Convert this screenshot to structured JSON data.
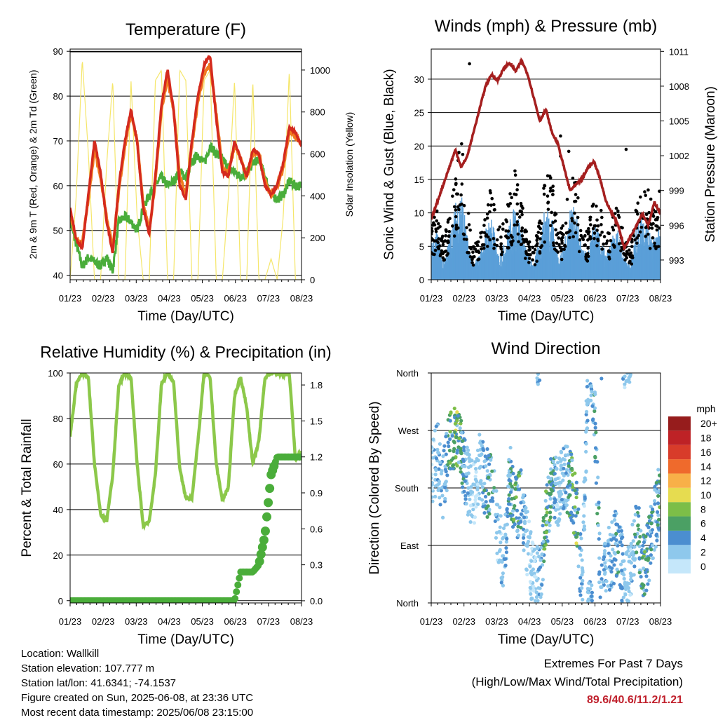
{
  "colors": {
    "temp2m": "#d42a1e",
    "temp9m": "#f07a20",
    "dewpoint": "#4aad3a",
    "solar": "#f5e66a",
    "wind": "#5a9fd8",
    "gust": "#000000",
    "pressure": "#a51f1f",
    "rh": "#8cc84a",
    "precip": "#4aad3a",
    "extremes": "#c0202c",
    "grid": "#000000"
  },
  "info": {
    "location": "Location: Wallkill",
    "elevation": "Station elevation: 107.777 m",
    "latlon": "Station lat/lon: 41.6341; -74.1537",
    "created": "Figure created on Sun, 2025-06-08, at 23:36 UTC",
    "recent": "Most recent data timestamp: 2025/06/08 23:15:00"
  },
  "extremes": {
    "title": "Extremes For Past 7 Days",
    "subtitle": "(High/Low/Max Wind/Total Precipitation)",
    "values": "89.6/40.6/11.2/1.21"
  },
  "chart_data": [
    {
      "type": "line",
      "title": "Temperature (F)",
      "xlabel": "Time (Day/UTC)",
      "ylabel": "2m & 9m T (Red, Orange) & 2m Td (Green)",
      "ylabel_right": "Solar Insolation (Yellow)",
      "x_ticks": [
        "01/23",
        "02/23",
        "03/23",
        "04/23",
        "05/23",
        "06/23",
        "07/23",
        "08/23"
      ],
      "ylim": [
        39,
        90.5
      ],
      "y_ticks": [
        40,
        50,
        60,
        70,
        80,
        90
      ],
      "ylim_right": [
        0,
        1100
      ],
      "y_ticks_right": [
        0,
        200,
        400,
        600,
        800,
        1000
      ],
      "grid": true,
      "series": [
        {
          "name": "2m T",
          "color": "#d42a1e",
          "values": [
            55,
            48,
            46,
            58,
            70,
            63,
            52,
            45,
            60,
            70,
            77,
            70,
            55,
            49,
            62,
            78,
            86,
            77,
            60,
            57,
            70,
            80,
            87,
            89,
            75,
            63,
            62,
            70,
            66,
            62,
            68,
            67,
            60,
            58,
            60,
            65,
            73,
            72,
            69
          ]
        },
        {
          "name": "9m T",
          "color": "#f07a20",
          "values": [
            54,
            48,
            47,
            57,
            68,
            62,
            53,
            46,
            59,
            69,
            76,
            70,
            56,
            50,
            61,
            77,
            84,
            77,
            62,
            58,
            69,
            79,
            85,
            87,
            76,
            64,
            63,
            69,
            66,
            62,
            67,
            67,
            61,
            58,
            60,
            64,
            72,
            71,
            69
          ]
        },
        {
          "name": "2m Td",
          "color": "#4aad3a",
          "values": [
            52,
            47,
            42,
            44,
            43,
            42,
            44,
            41,
            52,
            53,
            52,
            50,
            55,
            58,
            60,
            62,
            60,
            61,
            63,
            62,
            65,
            67,
            65,
            69,
            67,
            66,
            64,
            63,
            62,
            63,
            65,
            66,
            62,
            58,
            57,
            58,
            61,
            60,
            60
          ]
        },
        {
          "name": "Solar Insolation",
          "color": "#f5e66a",
          "axis": "right",
          "values": [
            0,
            400,
            1050,
            600,
            0,
            0,
            550,
            950,
            0,
            0,
            950,
            300,
            0,
            0,
            950,
            1000,
            0,
            0,
            1000,
            950,
            0,
            0,
            950,
            1000,
            0,
            0,
            400,
            950,
            0,
            0,
            950,
            0,
            0,
            100,
            0,
            300,
            1000,
            0,
            0
          ]
        }
      ]
    },
    {
      "type": "scatter",
      "title": "Winds (mph) & Pressure (mb)",
      "xlabel": "Time (Day/UTC)",
      "ylabel": "Sonic Wind & Gust (Blue, Black)",
      "ylabel_right": "Station Pressure (Maroon)",
      "x_ticks": [
        "01/23",
        "02/23",
        "03/23",
        "04/23",
        "05/23",
        "06/23",
        "07/23",
        "08/23"
      ],
      "ylim": [
        0,
        34.5
      ],
      "y_ticks": [
        0,
        5,
        10,
        15,
        20,
        25,
        30
      ],
      "ylim_right": [
        991.3,
        1011.2
      ],
      "y_ticks_right": [
        993,
        996,
        999,
        1002,
        1005,
        1008,
        1011
      ],
      "grid": true,
      "series": [
        {
          "name": "Station Pressure",
          "color": "#a51f1f",
          "axis": "right",
          "line": true,
          "values": [
            996.5,
            998,
            999.5,
            1001,
            1002.5,
            1001,
            1002,
            1004,
            1006,
            1008,
            1009,
            1008.5,
            1009.5,
            1010,
            1009.3,
            1010.2,
            1009,
            1007,
            1005,
            1006,
            1004,
            1003,
            1001,
            999,
            999.5,
            1000,
            1001,
            1001.5,
            1000,
            998,
            997,
            996,
            994,
            995,
            996,
            997,
            996,
            998,
            997
          ]
        },
        {
          "name": "Sonic Wind",
          "color": "#5a9fd8",
          "type": "scatter",
          "values": [
            4,
            6,
            2,
            5,
            9,
            11,
            5,
            2,
            3,
            6,
            8,
            3,
            4,
            7,
            9,
            6,
            3,
            2,
            5,
            9,
            8,
            3,
            4,
            9,
            8,
            4,
            3,
            7,
            5,
            3,
            5,
            6,
            3,
            2,
            6,
            8,
            7,
            5,
            8
          ]
        },
        {
          "name": "Gust",
          "color": "#000000",
          "type": "scatter",
          "values": [
            6,
            9,
            5,
            8,
            14,
            17,
            9,
            4,
            5,
            9,
            12,
            6,
            7,
            10,
            14,
            10,
            5,
            4,
            8,
            13,
            13,
            6,
            7,
            14,
            12,
            6,
            6,
            11,
            9,
            5,
            8,
            9,
            5,
            4,
            9,
            12,
            11,
            8,
            12
          ]
        }
      ]
    },
    {
      "type": "line",
      "title": "Relative Humidity (%) & Precipitation (in)",
      "xlabel": "Time (Day/UTC)",
      "ylabel": "Percent & Total Rainfall",
      "x_ticks": [
        "01/23",
        "02/23",
        "03/23",
        "04/23",
        "05/23",
        "06/23",
        "07/23",
        "08/23"
      ],
      "ylim": [
        -1,
        100
      ],
      "y_ticks": [
        0,
        20,
        40,
        60,
        80,
        100
      ],
      "ylim_right": [
        -0.018,
        1.9
      ],
      "y_ticks_right": [
        "0.0",
        "0.3",
        "0.6",
        "0.9",
        "1.2",
        "1.5",
        "1.8"
      ],
      "grid": true,
      "series": [
        {
          "name": "Relative Humidity",
          "color": "#8cc84a",
          "values": [
            72,
            95,
            100,
            98,
            60,
            38,
            35,
            55,
            95,
            100,
            98,
            60,
            33,
            35,
            55,
            95,
            100,
            96,
            58,
            45,
            45,
            70,
            100,
            98,
            60,
            44,
            50,
            90,
            98,
            85,
            60,
            70,
            98,
            100,
            100,
            99,
            100,
            62,
            65
          ]
        },
        {
          "name": "Total Precipitation",
          "color": "#4aad3a",
          "values": [
            0,
            0,
            0,
            0,
            0,
            0,
            0,
            0,
            0,
            0,
            0,
            0,
            0,
            0,
            0,
            0,
            0,
            0,
            0,
            0,
            0,
            0,
            0,
            0,
            0,
            0,
            0,
            0,
            0.24,
            0.24,
            0.24,
            0.3,
            0.55,
            1.05,
            1.2,
            1.2,
            1.2,
            1.2,
            1.2
          ]
        }
      ]
    },
    {
      "type": "scatter",
      "title": "Wind Direction",
      "xlabel": "Time (Day/UTC)",
      "ylabel": "Direction (Colored By Speed)",
      "x_ticks": [
        "01/23",
        "02/23",
        "03/23",
        "04/23",
        "05/23",
        "06/23",
        "07/23",
        "08/23"
      ],
      "y_ticks": [
        "North",
        "East",
        "South",
        "West",
        "North"
      ],
      "ylim": [
        0,
        360
      ],
      "grid": true,
      "colorbar": {
        "title": "mph",
        "labels": [
          "0",
          "2",
          "4",
          "6",
          "8",
          "10",
          "12",
          "14",
          "16",
          "18",
          "20+"
        ],
        "colors": [
          "#c5e7fa",
          "#8ec8ec",
          "#4b8ed0",
          "#4ba064",
          "#7cbe48",
          "#e6dc50",
          "#f8b048",
          "#ef6a2c",
          "#d83c2a",
          "#be2226",
          "#961c1c"
        ]
      },
      "series": [
        {
          "name": "direction",
          "values": [
            200,
            230,
            180,
            250,
            270,
            230,
            190,
            170,
            210,
            190,
            180,
            120,
            60,
            200,
            150,
            160,
            90,
            40,
            30,
            120,
            190,
            170,
            200,
            190,
            150,
            30,
            360,
            320,
            40,
            60,
            80,
            100,
            30,
            40,
            120,
            60,
            80,
            130,
            170
          ]
        },
        {
          "name": "speed",
          "values": [
            2,
            4,
            3,
            6,
            9,
            6,
            3,
            1,
            2,
            5,
            7,
            2,
            3,
            6,
            8,
            5,
            2,
            1,
            4,
            7,
            7,
            2,
            3,
            7,
            8,
            3,
            3,
            6,
            5,
            3,
            4,
            5,
            3,
            2,
            5,
            7,
            6,
            4,
            7
          ]
        }
      ]
    }
  ]
}
